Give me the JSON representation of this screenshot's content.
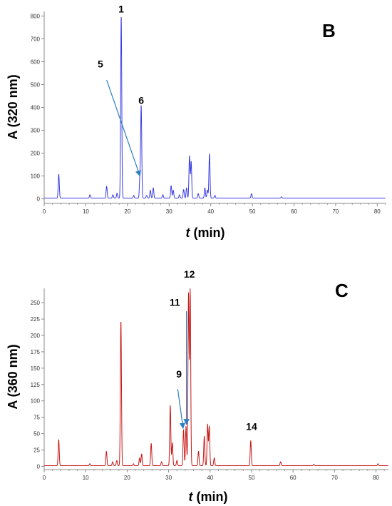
{
  "chart_data": [
    {
      "type": "line",
      "panel": "B",
      "xlabel_var": "t",
      "xlabel_unit": " (min)",
      "ylabel": "A (320 nm)",
      "xlim": [
        0,
        82
      ],
      "ylim": [
        -20,
        820
      ],
      "xticks": [
        0,
        10,
        20,
        30,
        40,
        50,
        60,
        70,
        80
      ],
      "yticks": [
        0,
        100,
        200,
        300,
        400,
        500,
        600,
        700,
        800
      ],
      "grid": false,
      "color": "#3a3ee0",
      "baseline": 3,
      "peaks": [
        {
          "t": 3.5,
          "a": 105
        },
        {
          "t": 11.0,
          "a": 15
        },
        {
          "t": 15.0,
          "a": 52
        },
        {
          "t": 16.5,
          "a": 15
        },
        {
          "t": 17.5,
          "a": 22
        },
        {
          "t": 18.5,
          "a": 800
        },
        {
          "t": 21.5,
          "a": 12
        },
        {
          "t": 23.0,
          "a": 95
        },
        {
          "t": 23.3,
          "a": 400
        },
        {
          "t": 24.6,
          "a": 12
        },
        {
          "t": 25.5,
          "a": 35
        },
        {
          "t": 26.2,
          "a": 45
        },
        {
          "t": 28.5,
          "a": 15
        },
        {
          "t": 30.5,
          "a": 55
        },
        {
          "t": 31.0,
          "a": 35
        },
        {
          "t": 32.5,
          "a": 15
        },
        {
          "t": 33.5,
          "a": 38
        },
        {
          "t": 34.2,
          "a": 45
        },
        {
          "t": 34.9,
          "a": 185
        },
        {
          "t": 35.3,
          "a": 160
        },
        {
          "t": 37.0,
          "a": 20
        },
        {
          "t": 38.6,
          "a": 45
        },
        {
          "t": 39.2,
          "a": 35
        },
        {
          "t": 39.7,
          "a": 195
        },
        {
          "t": 41.0,
          "a": 12
        },
        {
          "t": 49.8,
          "a": 20
        },
        {
          "t": 57.0,
          "a": 6
        }
      ],
      "peak_labels": [
        {
          "text": "1",
          "t": 18.5,
          "a": 800
        },
        {
          "text": "6",
          "t": 23.3,
          "a": 400
        },
        {
          "text": "5",
          "t": 13.5,
          "a": 560
        }
      ],
      "arrows": [
        {
          "from_t": 15.0,
          "from_a": 520,
          "to_t": 23.0,
          "to_a": 100
        }
      ]
    },
    {
      "type": "line",
      "panel": "C",
      "xlabel_var": "t",
      "xlabel_unit": " (min)",
      "ylabel": "A (360 nm)",
      "xlim": [
        0,
        83
      ],
      "ylim": [
        -5,
        272
      ],
      "xticks": [
        0,
        10,
        20,
        30,
        40,
        50,
        60,
        70,
        80
      ],
      "yticks": [
        0,
        25,
        50,
        75,
        100,
        125,
        150,
        175,
        200,
        225,
        250
      ],
      "grid": false,
      "color": "#c81818",
      "baseline": 1,
      "peaks": [
        {
          "t": 3.5,
          "a": 40
        },
        {
          "t": 11.0,
          "a": 3
        },
        {
          "t": 15.0,
          "a": 22
        },
        {
          "t": 16.5,
          "a": 6
        },
        {
          "t": 17.5,
          "a": 8
        },
        {
          "t": 18.5,
          "a": 222
        },
        {
          "t": 21.5,
          "a": 3
        },
        {
          "t": 23.0,
          "a": 12
        },
        {
          "t": 23.5,
          "a": 18
        },
        {
          "t": 25.8,
          "a": 34
        },
        {
          "t": 28.3,
          "a": 6
        },
        {
          "t": 30.4,
          "a": 92
        },
        {
          "t": 30.9,
          "a": 35
        },
        {
          "t": 32.0,
          "a": 8
        },
        {
          "t": 33.6,
          "a": 55
        },
        {
          "t": 34.2,
          "a": 60
        },
        {
          "t": 34.8,
          "a": 262
        },
        {
          "t": 35.2,
          "a": 268
        },
        {
          "t": 37.2,
          "a": 22
        },
        {
          "t": 38.6,
          "a": 45
        },
        {
          "t": 39.4,
          "a": 63
        },
        {
          "t": 39.8,
          "a": 60
        },
        {
          "t": 41.0,
          "a": 12
        },
        {
          "t": 49.8,
          "a": 38
        },
        {
          "t": 57.0,
          "a": 6
        },
        {
          "t": 65.0,
          "a": 2
        },
        {
          "t": 80.5,
          "a": 3
        }
      ],
      "peak_labels": [
        {
          "text": "12",
          "t": 35.0,
          "a": 283
        },
        {
          "text": "11",
          "t": 31.5,
          "a": 240
        },
        {
          "text": "9",
          "t": 32.5,
          "a": 130
        },
        {
          "text": "14",
          "t": 50.0,
          "a": 50
        }
      ],
      "arrows": [
        {
          "from_t": 32.2,
          "from_a": 118,
          "to_t": 33.5,
          "to_a": 58
        },
        {
          "from_t": 34.3,
          "from_a": 237,
          "to_t": 34.3,
          "to_a": 64
        }
      ]
    }
  ],
  "panels": [
    {
      "letter": "B"
    },
    {
      "letter": "C"
    }
  ]
}
